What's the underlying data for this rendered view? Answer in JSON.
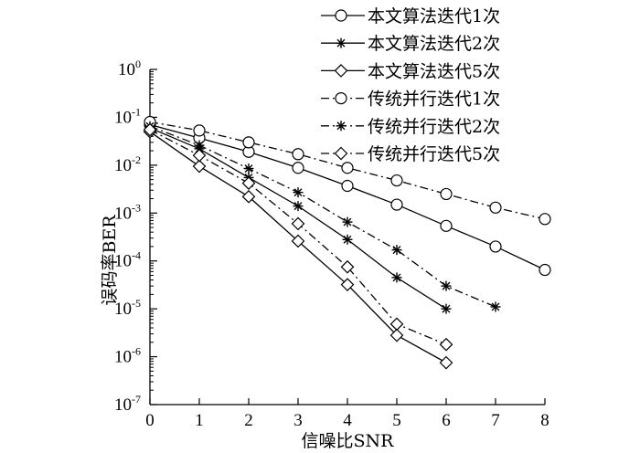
{
  "chart_data": {
    "type": "line",
    "xlabel": "信噪比SNR",
    "ylabel": "误码率BER",
    "x_ticks": [
      "0",
      "1",
      "2",
      "3",
      "4",
      "5",
      "6",
      "7",
      "8"
    ],
    "y_ticks": [
      {
        "base": "10",
        "exp": "0"
      },
      {
        "base": "10",
        "exp": "-1"
      },
      {
        "base": "10",
        "exp": "-2"
      },
      {
        "base": "10",
        "exp": "-3"
      },
      {
        "base": "10",
        "exp": "-4"
      },
      {
        "base": "10",
        "exp": "-5"
      },
      {
        "base": "10",
        "exp": "-6"
      },
      {
        "base": "10",
        "exp": "-7"
      }
    ],
    "xlim": [
      0,
      8
    ],
    "ylim": [
      1e-07,
      1
    ],
    "yscale": "log",
    "grid": false,
    "legend_position": "top-right",
    "series": [
      {
        "name": "本文算法迭代1次",
        "marker": "circle",
        "line": "solid",
        "x": [
          0,
          1,
          2,
          3,
          4,
          5,
          6,
          7,
          8
        ],
        "y": [
          0.07,
          0.037,
          0.019,
          0.0088,
          0.0037,
          0.0015,
          0.00054,
          0.0002,
          6.5e-05
        ]
      },
      {
        "name": "本文算法迭代2次",
        "marker": "star",
        "line": "solid",
        "x": [
          0,
          1,
          2,
          3,
          4,
          5,
          6
        ],
        "y": [
          0.06,
          0.022,
          0.0055,
          0.0014,
          0.00028,
          4.5e-05,
          1e-05
        ]
      },
      {
        "name": "本文算法迭代5次",
        "marker": "diamond",
        "line": "solid",
        "x": [
          0,
          1,
          2,
          3,
          4,
          5,
          6
        ],
        "y": [
          0.05,
          0.0095,
          0.0022,
          0.00026,
          3.2e-05,
          2.8e-06,
          7.5e-07
        ]
      },
      {
        "name": "传统并行迭代1次",
        "marker": "circle",
        "line": "dashdot",
        "x": [
          0,
          1,
          2,
          3,
          4,
          5,
          6,
          7,
          8
        ],
        "y": [
          0.08,
          0.053,
          0.03,
          0.017,
          0.0088,
          0.0048,
          0.0025,
          0.0013,
          0.00075
        ]
      },
      {
        "name": "传统并行迭代2次",
        "marker": "star",
        "line": "dashdot",
        "x": [
          0,
          1,
          2,
          3,
          4,
          5,
          6,
          7
        ],
        "y": [
          0.065,
          0.026,
          0.0085,
          0.0027,
          0.00065,
          0.00017,
          3e-05,
          1.1e-05
        ]
      },
      {
        "name": "传统并行迭代5次",
        "marker": "diamond",
        "line": "dashdot",
        "x": [
          0,
          1,
          2,
          3,
          4,
          5,
          6
        ],
        "y": [
          0.055,
          0.016,
          0.0042,
          0.0006,
          7.5e-05,
          4.8e-06,
          1.8e-06
        ]
      }
    ]
  }
}
